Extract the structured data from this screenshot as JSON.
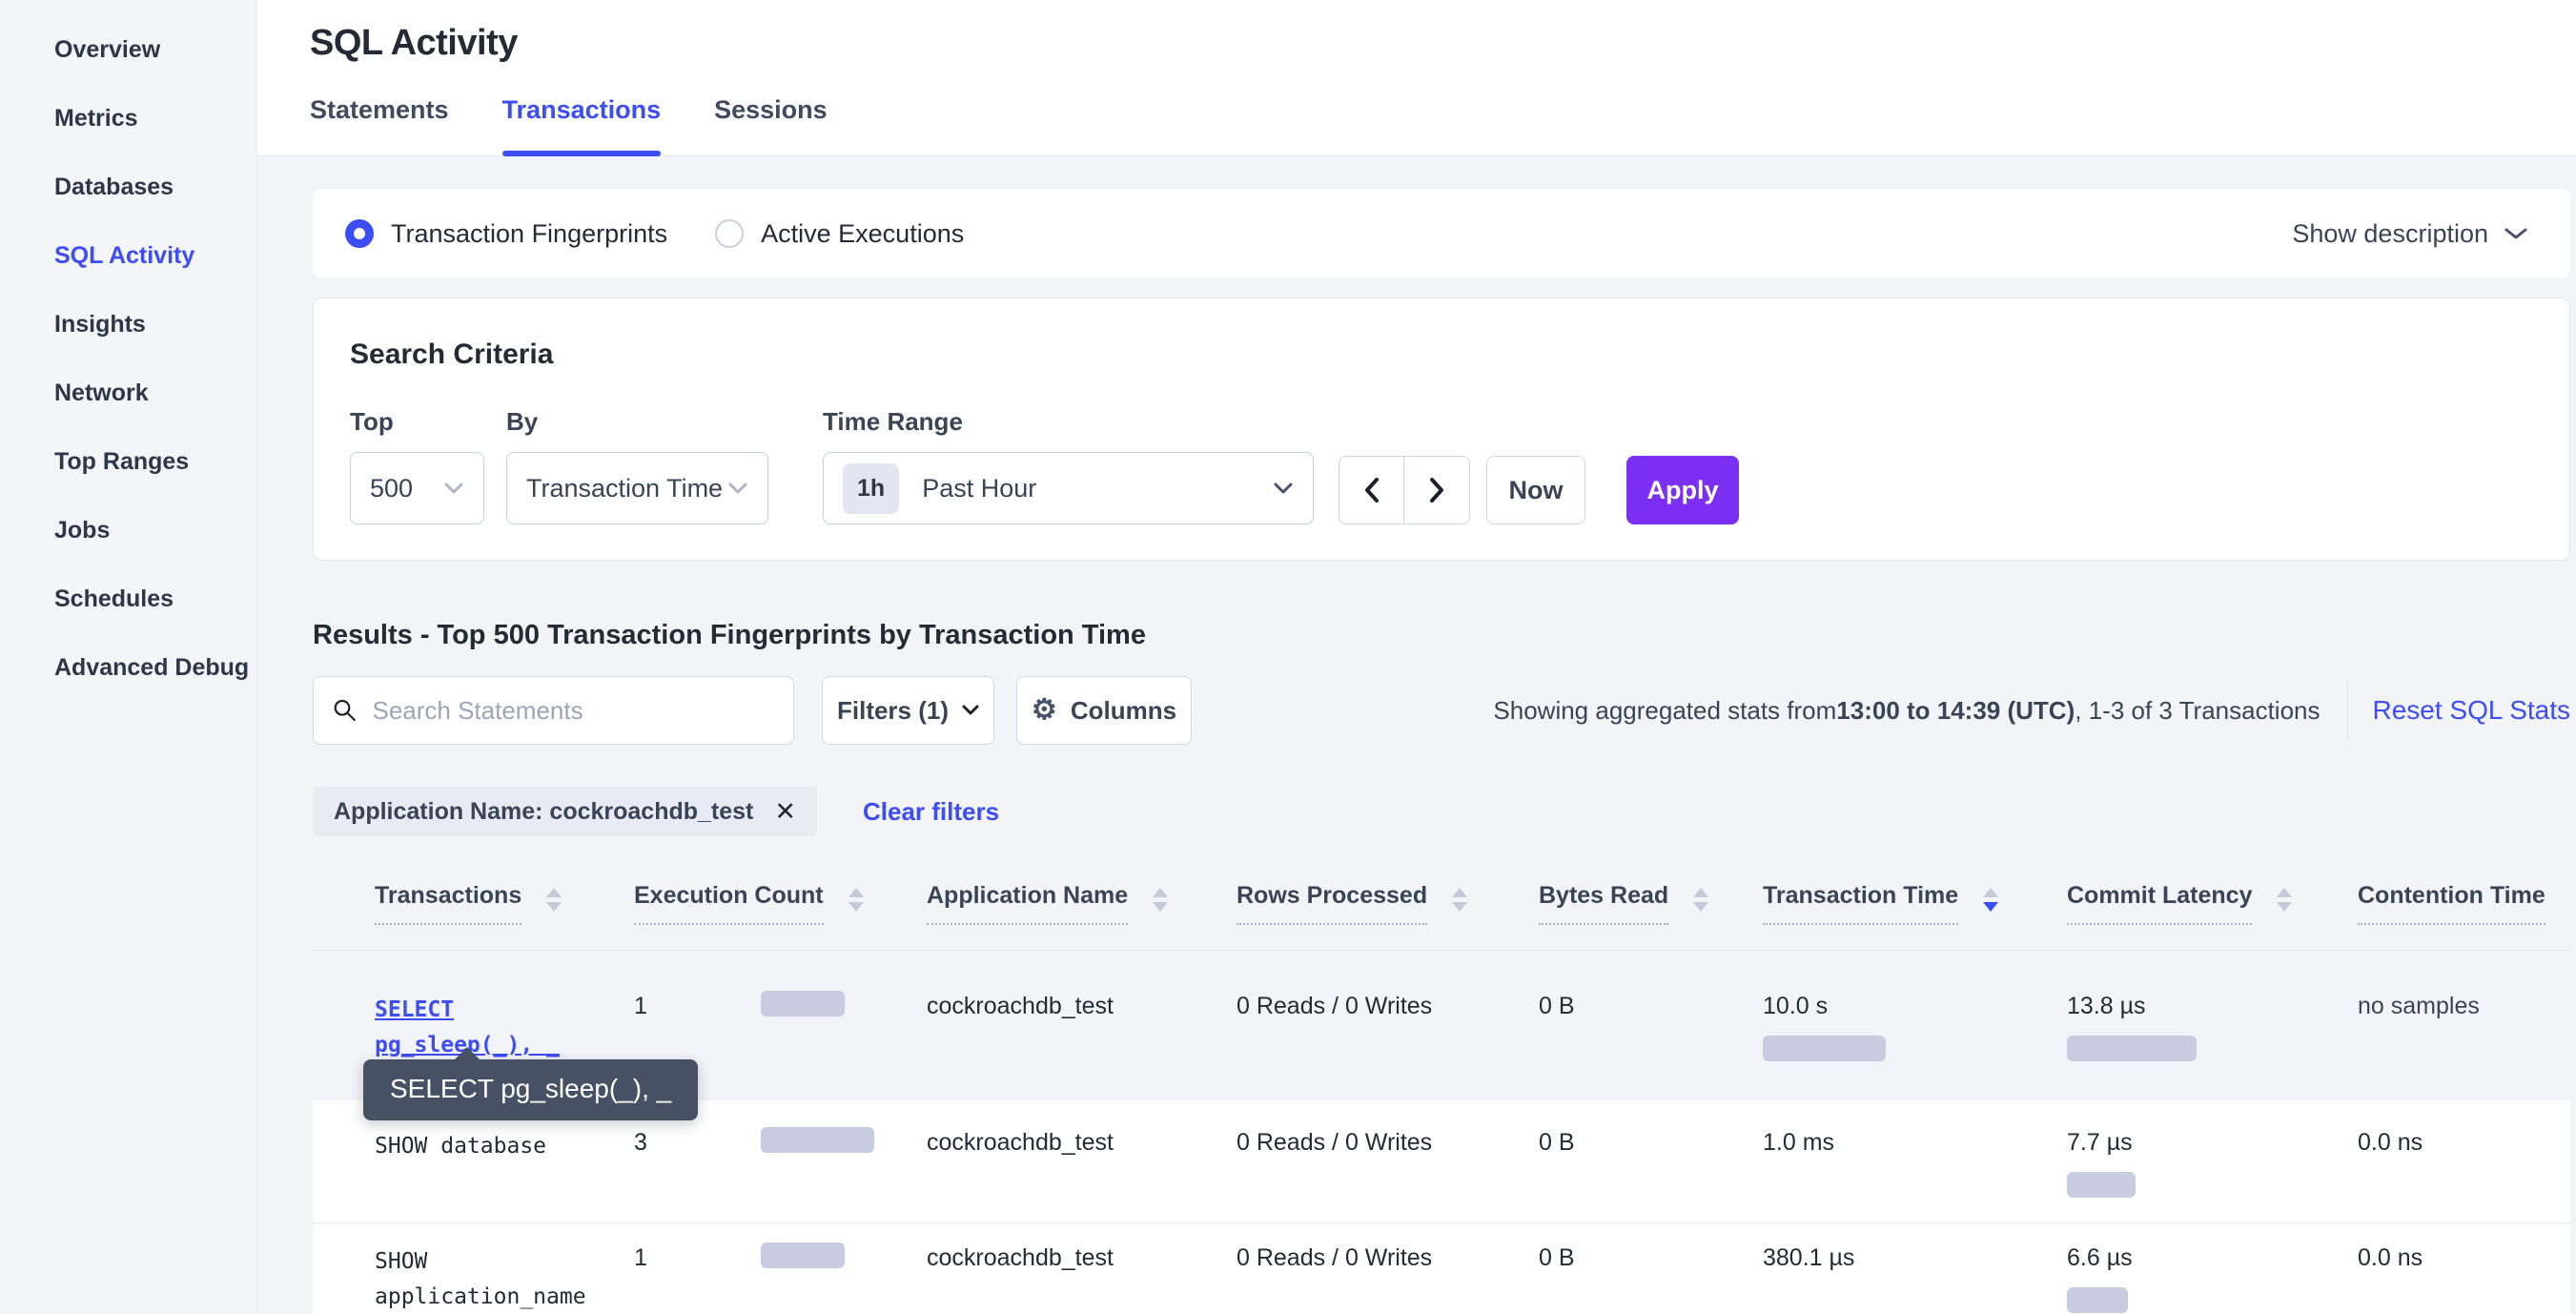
{
  "sidebar": {
    "items": [
      {
        "label": "Overview"
      },
      {
        "label": "Metrics"
      },
      {
        "label": "Databases"
      },
      {
        "label": "SQL Activity"
      },
      {
        "label": "Insights"
      },
      {
        "label": "Network"
      },
      {
        "label": "Top Ranges"
      },
      {
        "label": "Jobs"
      },
      {
        "label": "Schedules"
      },
      {
        "label": "Advanced Debug"
      }
    ],
    "active_item": "SQL Activity"
  },
  "header": {
    "title": "SQL Activity",
    "tabs": [
      {
        "label": "Statements"
      },
      {
        "label": "Transactions"
      },
      {
        "label": "Sessions"
      }
    ],
    "active_tab": "Transactions"
  },
  "view_toggle": {
    "options": [
      {
        "label": "Transaction Fingerprints",
        "selected": true
      },
      {
        "label": "Active Executions",
        "selected": false
      }
    ],
    "show_description_label": "Show description"
  },
  "search_criteria": {
    "title": "Search Criteria",
    "top": {
      "label": "Top",
      "value": "500"
    },
    "by": {
      "label": "By",
      "value": "Transaction Time"
    },
    "time_range": {
      "label": "Time Range",
      "badge": "1h",
      "value": "Past Hour"
    },
    "now_label": "Now",
    "apply_label": "Apply"
  },
  "results": {
    "heading": "Results - Top 500 Transaction Fingerprints by Transaction Time",
    "search_placeholder": "Search Statements",
    "filters_label": "Filters (1)",
    "columns_label": "Columns",
    "stats_prefix": "Showing aggregated stats from ",
    "stats_range": "13:00 to 14:39 (UTC)",
    "stats_suffix": ", 1-3 of 3 Transactions",
    "reset_label": "Reset SQL Stats",
    "filter_chip": "Application Name: cockroachdb_test",
    "clear_filters_label": "Clear filters"
  },
  "table": {
    "columns": [
      {
        "label": "Transactions",
        "sort": "none"
      },
      {
        "label": "Execution Count",
        "sort": "none"
      },
      {
        "label": "Application Name",
        "sort": "none"
      },
      {
        "label": "Rows Processed",
        "sort": "none"
      },
      {
        "label": "Bytes Read",
        "sort": "none"
      },
      {
        "label": "Transaction Time",
        "sort": "desc"
      },
      {
        "label": "Commit Latency",
        "sort": "none"
      },
      {
        "label": "Contention Time",
        "sort": "none"
      }
    ],
    "rows": [
      {
        "tx_line1": "SELECT",
        "tx_line2": "pg_sleep(_), _",
        "exec_count": "1",
        "exec_bar": 88,
        "app": "cockroachdb_test",
        "rows_processed": "0 Reads / 0 Writes",
        "bytes_read": "0 B",
        "txn_time": "10.0 s",
        "txn_bar": 129,
        "commit_latency": "13.8 µs",
        "commit_bar": 136,
        "contention": "no samples"
      },
      {
        "tx_line1": "SHOW database",
        "exec_count": "3",
        "exec_bar": 119,
        "app": "cockroachdb_test",
        "rows_processed": "0 Reads / 0 Writes",
        "bytes_read": "0 B",
        "txn_time": "1.0 ms",
        "txn_bar": 0,
        "commit_latency": "7.7 µs",
        "commit_bar": 72,
        "contention": "0.0 ns"
      },
      {
        "tx_line1": "SHOW",
        "tx_line2": "application_name",
        "exec_count": "1",
        "exec_bar": 88,
        "app": "cockroachdb_test",
        "rows_processed": "0 Reads / 0 Writes",
        "bytes_read": "0 B",
        "txn_time": "380.1 µs",
        "txn_bar": 0,
        "commit_latency": "6.6 µs",
        "commit_bar": 64,
        "contention": "0.0 ns"
      }
    ]
  },
  "tooltip": {
    "text": "SELECT pg_sleep(_), _"
  },
  "colors": {
    "accent_blue": "#3d4df4",
    "apply_purple": "#7b2ff2",
    "bar_fill": "#c7cce0",
    "tooltip_bg": "#475166",
    "page_bg": "#f4f5f9"
  }
}
